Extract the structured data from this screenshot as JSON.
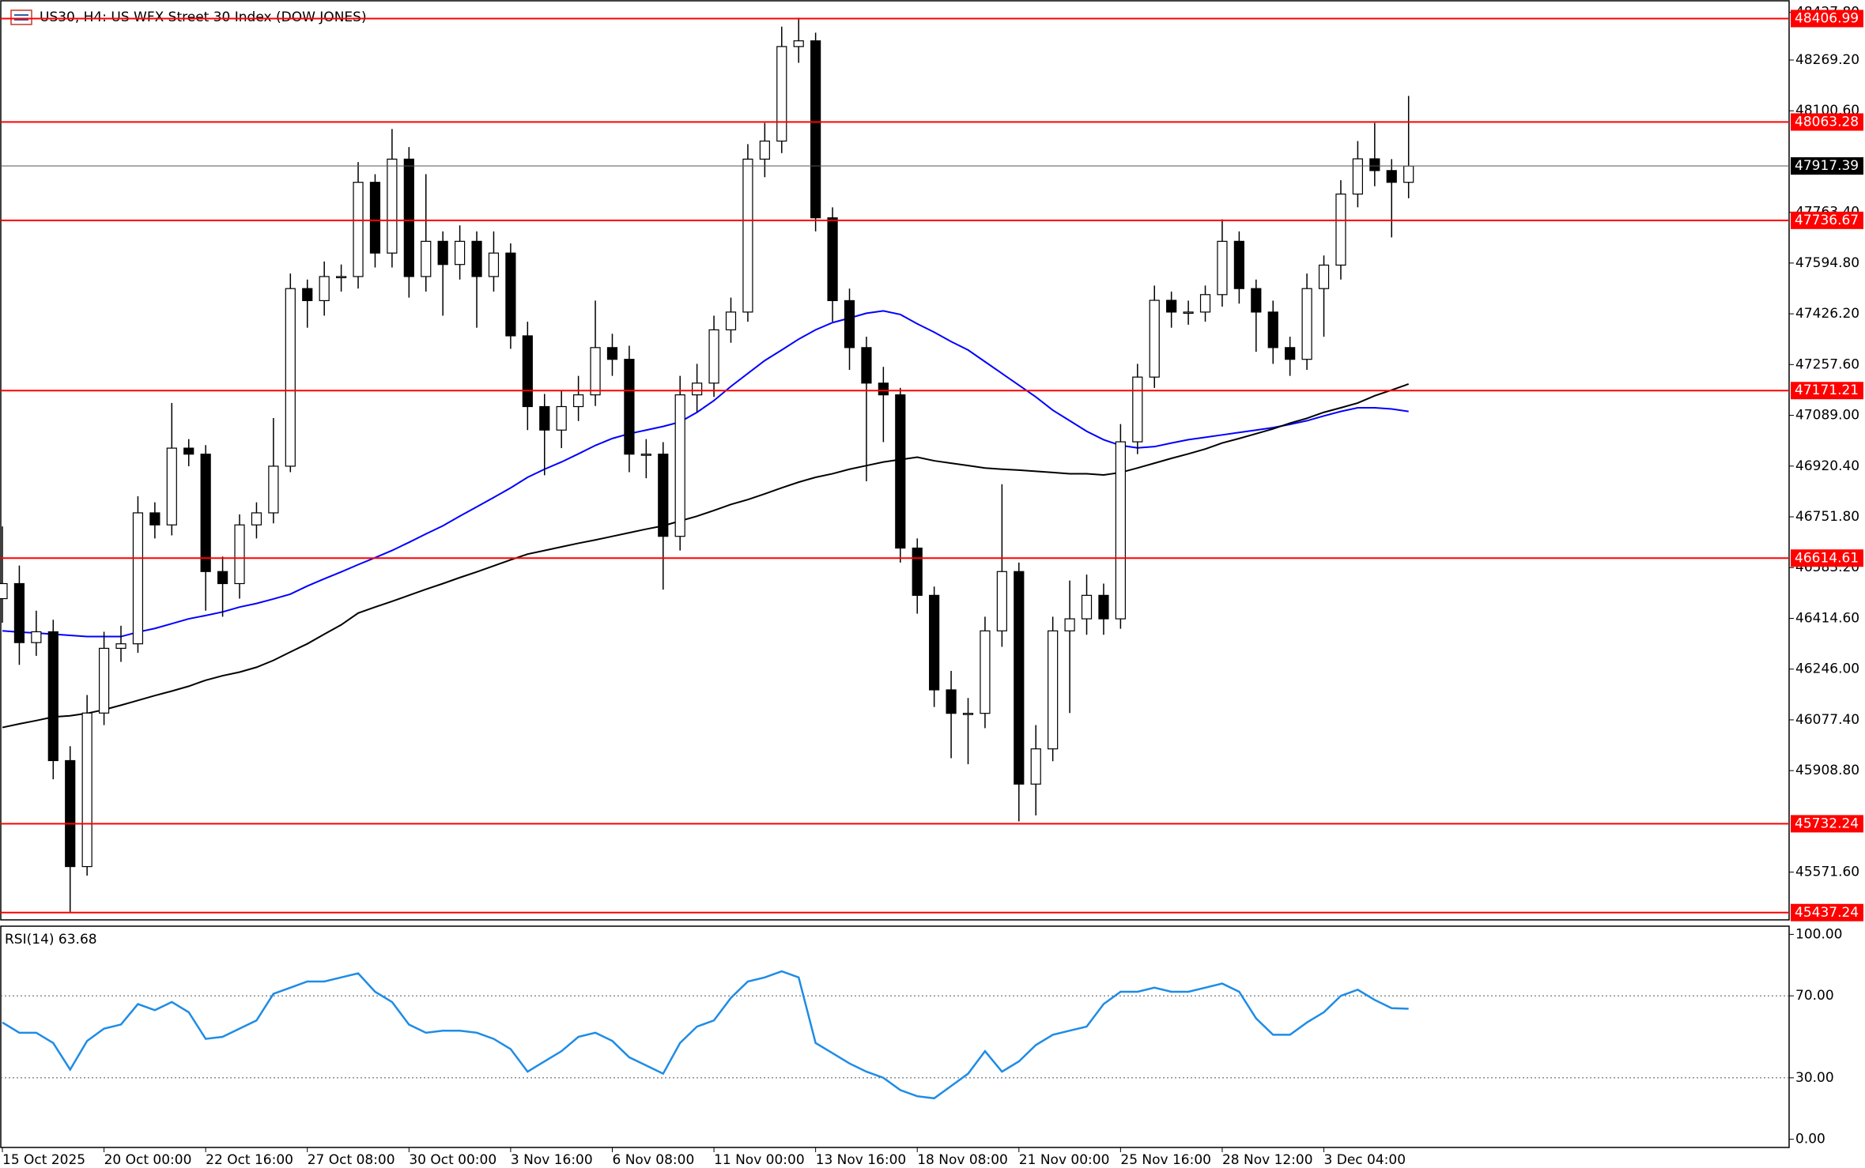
{
  "chart_data": {
    "type": "candlestick",
    "title": "US30, H4:  US WFX Street 30 Index (DOW JONES)",
    "categories": [
      "15 Oct 2025",
      null,
      null,
      null,
      null,
      null,
      "20 Oct 00:00",
      null,
      null,
      null,
      null,
      null,
      "22 Oct 16:00",
      null,
      null,
      null,
      null,
      null,
      "27 Oct 08:00",
      null,
      null,
      null,
      null,
      null,
      "30 Oct 00:00",
      null,
      null,
      null,
      null,
      null,
      "3 Nov 16:00",
      null,
      null,
      null,
      null,
      null,
      "6 Nov 08:00",
      null,
      null,
      null,
      null,
      null,
      "11 Nov 00:00",
      null,
      null,
      null,
      null,
      null,
      "13 Nov 16:00",
      null,
      null,
      null,
      null,
      null,
      "18 Nov 08:00",
      null,
      null,
      null,
      null,
      null,
      "21 Nov 00:00",
      null,
      null,
      null,
      null,
      null,
      "25 Nov 16:00",
      null,
      null,
      null,
      null,
      null,
      "28 Nov 12:00",
      null,
      null,
      null,
      null,
      null,
      "3 Dec 04:00",
      null,
      null,
      null,
      null,
      null
    ],
    "open": [
      46480,
      46530,
      46334,
      46370,
      45942,
      45590,
      46100,
      46315,
      46330,
      46765,
      46725,
      46980,
      46960,
      46570,
      46530,
      46725,
      46765,
      46920,
      47510,
      47470,
      47550,
      47550,
      47863,
      47628,
      47940,
      47550,
      47667,
      47590,
      47667,
      47550,
      47628,
      47353,
      47118,
      47040,
      47118,
      47157,
      47314,
      47275,
      46960,
      46960,
      46687,
      47157,
      47196,
      47373,
      47432,
      47940,
      48000,
      48314,
      48333,
      47745,
      47470,
      47314,
      47196,
      47157,
      46648,
      46491,
      46177,
      46099,
      46099,
      46373,
      46570,
      45864,
      45981,
      46373,
      46413,
      46491,
      46413,
      47001,
      47216,
      47471,
      47432,
      47432,
      47490,
      47667,
      47510,
      47432,
      47314,
      47275,
      47510,
      47588,
      47824,
      47941,
      47902,
      47863
    ],
    "high": [
      46720,
      46590,
      46440,
      46410,
      45990,
      46160,
      46370,
      46390,
      46820,
      46800,
      47130,
      47010,
      46990,
      46620,
      46760,
      46800,
      47080,
      47560,
      47540,
      47600,
      47590,
      47930,
      47890,
      48040,
      47980,
      47890,
      47700,
      47720,
      47700,
      47700,
      47660,
      47400,
      47160,
      47170,
      47220,
      47470,
      47360,
      47320,
      47010,
      47000,
      47220,
      47260,
      47420,
      47480,
      47990,
      48060,
      48380,
      48410,
      48360,
      47780,
      47510,
      47350,
      47250,
      47180,
      46680,
      46520,
      46240,
      46150,
      46420,
      46860,
      46600,
      46060,
      46420,
      46540,
      46560,
      46530,
      47060,
      47260,
      47520,
      47500,
      47470,
      47520,
      47740,
      47700,
      47540,
      47470,
      47350,
      47560,
      47620,
      47870,
      48000,
      48060,
      47940,
      48150
    ],
    "low": [
      46400,
      46260,
      46290,
      45880,
      45440,
      45560,
      46060,
      46270,
      46300,
      46680,
      46690,
      46920,
      46440,
      46420,
      46480,
      46680,
      46730,
      46900,
      47380,
      47420,
      47500,
      47510,
      47580,
      47580,
      47480,
      47500,
      47420,
      47540,
      47380,
      47500,
      47310,
      47040,
      46890,
      46980,
      47070,
      47120,
      47220,
      46900,
      46880,
      46510,
      46640,
      47100,
      47150,
      47330,
      47400,
      47880,
      47960,
      48260,
      47700,
      47400,
      47240,
      46870,
      47000,
      46600,
      46430,
      46120,
      45950,
      45930,
      46050,
      46320,
      45740,
      45760,
      45940,
      46100,
      46360,
      46360,
      46380,
      46960,
      47180,
      47380,
      47390,
      47400,
      47450,
      47460,
      47300,
      47260,
      47220,
      47240,
      47350,
      47540,
      47780,
      47850,
      47680,
      47810
    ],
    "close": [
      46530,
      46334,
      46370,
      45942,
      45590,
      46100,
      46315,
      46330,
      46765,
      46725,
      46980,
      46960,
      46570,
      46530,
      46725,
      46765,
      46920,
      47510,
      47470,
      47550,
      47550,
      47863,
      47628,
      47940,
      47550,
      47667,
      47590,
      47667,
      47550,
      47628,
      47353,
      47118,
      47040,
      47118,
      47157,
      47314,
      47275,
      46960,
      46960,
      46687,
      47157,
      47196,
      47373,
      47432,
      47940,
      48000,
      48314,
      48333,
      47745,
      47470,
      47314,
      47196,
      47157,
      46648,
      46491,
      46177,
      46099,
      46099,
      46373,
      46570,
      45864,
      45981,
      46373,
      46413,
      46491,
      46413,
      47001,
      47216,
      47471,
      47432,
      47432,
      47490,
      47667,
      47510,
      47432,
      47314,
      47275,
      47510,
      47588,
      47824,
      47941,
      47902,
      47863,
      47917
    ],
    "ylim": [
      45413,
      48466
    ],
    "yticks": [
      {
        "value": 48427.8,
        "label": "48427.80"
      },
      {
        "value": 48269.2,
        "label": "48269.20"
      },
      {
        "value": 48100.6,
        "label": "48100.60"
      },
      {
        "value": 47763.4,
        "label": "47763.40"
      },
      {
        "value": 47594.8,
        "label": "47594.80"
      },
      {
        "value": 47426.2,
        "label": "47426.20"
      },
      {
        "value": 47257.6,
        "label": "47257.60"
      },
      {
        "value": 47089,
        "label": "47089.00"
      },
      {
        "value": 46920.4,
        "label": "46920.40"
      },
      {
        "value": 46751.8,
        "label": "46751.80"
      },
      {
        "value": 46583.2,
        "label": "46583.20"
      },
      {
        "value": 46414.6,
        "label": "46414.60"
      },
      {
        "value": 46246,
        "label": "46246.00"
      },
      {
        "value": 46077.4,
        "label": "46077.40"
      },
      {
        "value": 45908.8,
        "label": "45908.80"
      },
      {
        "value": 45571.6,
        "label": "45571.60"
      }
    ],
    "levels": [
      48406.99,
      48063.28,
      47736.67,
      47171.21,
      46614.61,
      45732.24,
      45437.24
    ],
    "level_color": "#ff0000",
    "last_price": 47917.39,
    "moving_averages": [
      {
        "color": "#0000ff",
        "values": [
          46373,
          46369,
          46366,
          46362,
          46358,
          46354,
          46354,
          46354,
          46369,
          46381,
          46397,
          46413,
          46424,
          46436,
          46452,
          46464,
          46479,
          46495,
          46522,
          46546,
          46569,
          46593,
          46616,
          46640,
          46667,
          46695,
          46722,
          46754,
          46785,
          46816,
          46848,
          46883,
          46910,
          46934,
          46961,
          46989,
          47012,
          47028,
          47040,
          47052,
          47067,
          47099,
          47138,
          47185,
          47228,
          47271,
          47306,
          47342,
          47373,
          47397,
          47412,
          47428,
          47436,
          47424,
          47393,
          47365,
          47334,
          47306,
          47267,
          47228,
          47189,
          47150,
          47106,
          47071,
          47036,
          47008,
          46989,
          46981,
          46985,
          46997,
          47008,
          47016,
          47024,
          47032,
          47040,
          47048,
          47059,
          47071,
          47087,
          47102,
          47114,
          47114,
          47110,
          47102
        ]
      },
      {
        "color": "#000000",
        "values": [
          46052,
          46064,
          46075,
          46087,
          46091,
          46099,
          46111,
          46126,
          46142,
          46158,
          46173,
          46189,
          46209,
          46224,
          46236,
          46252,
          46275,
          46303,
          46330,
          46362,
          46393,
          46432,
          46452,
          46471,
          46491,
          46511,
          46530,
          46550,
          46569,
          46589,
          46609,
          46628,
          46640,
          46652,
          46664,
          46675,
          46687,
          46699,
          46711,
          46722,
          46738,
          46754,
          46773,
          46793,
          46809,
          46828,
          46848,
          46867,
          46883,
          46895,
          46910,
          46922,
          46934,
          46942,
          46950,
          46938,
          46930,
          46922,
          46914,
          46910,
          46907,
          46903,
          46899,
          46895,
          46895,
          46891,
          46899,
          46914,
          46930,
          46946,
          46961,
          46977,
          46997,
          47012,
          47028,
          47044,
          47063,
          47079,
          47099,
          47114,
          47130,
          47154,
          47173,
          47193
        ]
      }
    ],
    "rsi": {
      "label": "RSI(14) 63.68",
      "color": "#1e8ce6",
      "ylim": [
        -4,
        104
      ],
      "yticks": [
        {
          "value": 100,
          "label": "100.00"
        },
        {
          "value": 70,
          "label": "70.00"
        },
        {
          "value": 30,
          "label": "30.00"
        },
        {
          "value": 0,
          "label": "0.00"
        }
      ],
      "levels": [
        70,
        30
      ],
      "values": [
        57,
        52,
        52,
        47,
        34,
        48,
        54,
        56,
        66,
        63,
        67,
        62,
        49,
        50,
        54,
        58,
        71,
        74,
        77,
        77,
        79,
        81,
        72,
        67,
        56,
        52,
        53,
        53,
        52,
        49,
        44,
        33,
        38,
        43,
        50,
        52,
        48,
        40,
        36,
        32,
        47,
        55,
        58,
        69,
        77,
        79,
        82,
        79,
        47,
        42,
        37,
        33,
        30,
        24,
        21,
        20,
        26,
        32,
        43,
        33,
        38,
        46,
        51,
        53,
        55,
        66,
        72,
        72,
        74,
        72,
        72,
        74,
        76,
        72,
        59,
        51,
        51,
        57,
        62,
        70,
        73,
        68,
        64,
        63.68
      ]
    }
  }
}
